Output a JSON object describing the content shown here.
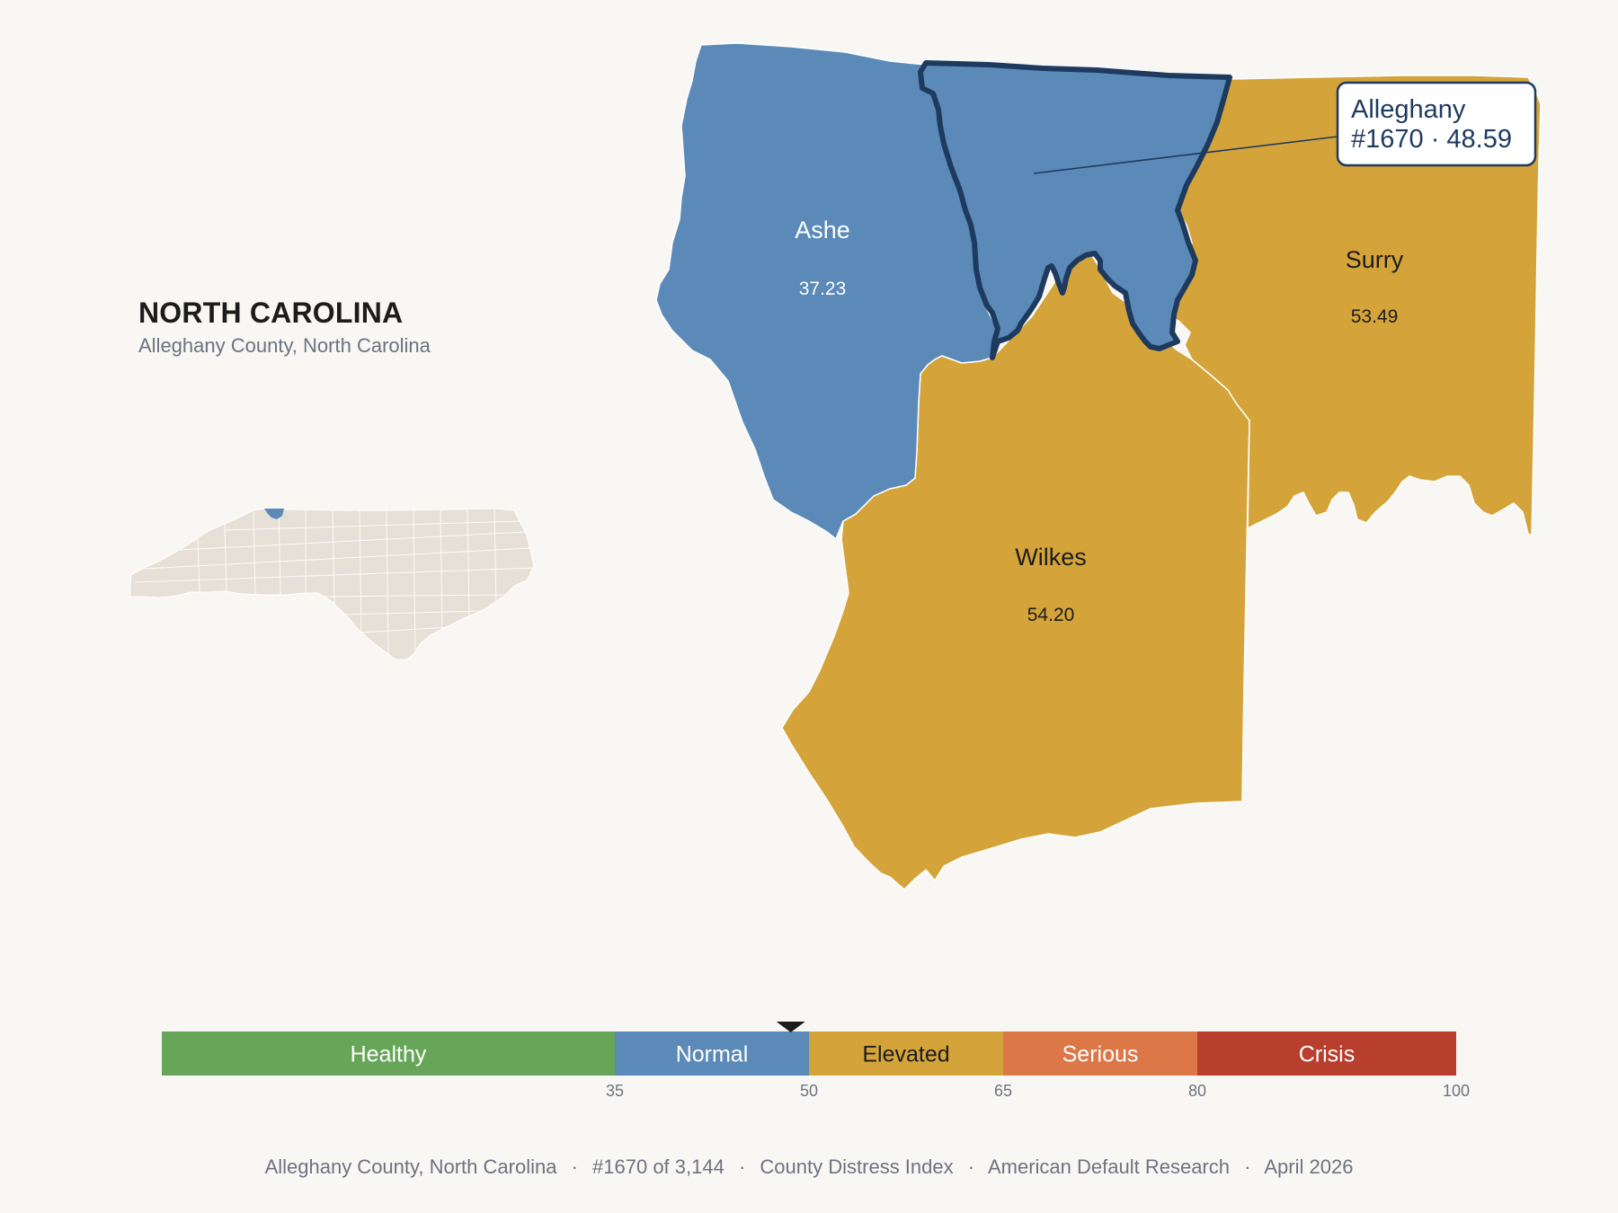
{
  "state": {
    "title": "NORTH CAROLINA",
    "subtitle": "Alleghany County, North Carolina"
  },
  "counties": [
    {
      "name": "Ashe",
      "value": "37.23",
      "category": "Normal",
      "text_color": "#ffffff"
    },
    {
      "name": "Surry",
      "value": "53.49",
      "category": "Elevated",
      "text_color": "#1c1c1c"
    },
    {
      "name": "Wilkes",
      "value": "54.20",
      "category": "Elevated",
      "text_color": "#1c1c1c"
    }
  ],
  "highlight": {
    "name": "Alleghany",
    "detail": "#1670 · 48.59",
    "rank": 1670,
    "score": 48.59,
    "category": "Normal"
  },
  "legend": {
    "segments": [
      {
        "label": "Healthy",
        "color": "#67a659",
        "text_color": "#ffffff",
        "min": 0,
        "max": 35
      },
      {
        "label": "Normal",
        "color": "#5b8ab9",
        "text_color": "#ffffff",
        "min": 35,
        "max": 50
      },
      {
        "label": "Elevated",
        "color": "#d4a43a",
        "text_color": "#1c1c1c",
        "min": 50,
        "max": 65
      },
      {
        "label": "Serious",
        "color": "#dc7748",
        "text_color": "#ffffff",
        "min": 65,
        "max": 80
      },
      {
        "label": "Crisis",
        "color": "#b83e2e",
        "text_color": "#ffffff",
        "min": 80,
        "max": 100
      }
    ],
    "ticks": [
      "35",
      "50",
      "65",
      "80",
      "100"
    ],
    "marker_value": 48.59
  },
  "colors": {
    "background": "#f9f7f4",
    "highlight_outline": "#1e3a5f",
    "inset_fill": "#e6e0d6",
    "inset_highlight": "#5b8ab9"
  },
  "footer": {
    "county": "Alleghany County, North Carolina",
    "rank": "#1670 of 3,144",
    "index": "County Distress Index",
    "publisher": "American Default Research",
    "date": "April 2026",
    "separator": "·"
  }
}
